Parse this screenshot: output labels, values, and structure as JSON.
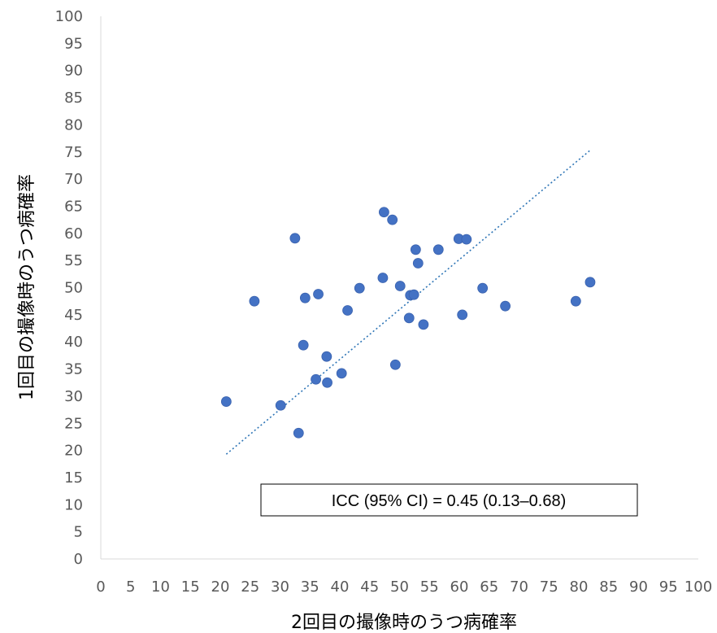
{
  "chart_data": {
    "type": "scatter",
    "xlabel": "2回目の撮像時のうつ病確率",
    "ylabel": "1回目の撮像時のうつ病確率",
    "xlim": [
      0,
      100
    ],
    "ylim": [
      0,
      100
    ],
    "x_ticks": [
      "0",
      "5",
      "10",
      "15",
      "20",
      "25",
      "30",
      "35",
      "40",
      "45",
      "50",
      "55",
      "60",
      "65",
      "70",
      "75",
      "80",
      "85",
      "90",
      "95",
      "100"
    ],
    "y_ticks": [
      "0",
      "5",
      "10",
      "15",
      "20",
      "25",
      "30",
      "35",
      "40",
      "45",
      "50",
      "55",
      "60",
      "65",
      "70",
      "75",
      "80",
      "85",
      "90",
      "95",
      "100"
    ],
    "grid": false,
    "legend": "none",
    "point_color": "#4472C4",
    "trendline": {
      "style": "dotted",
      "color": "#2E75B6",
      "from": [
        21,
        19.3
      ],
      "to": [
        82,
        75.4
      ]
    },
    "points": [
      {
        "x": 21.0,
        "y": 29.0
      },
      {
        "x": 25.7,
        "y": 47.5
      },
      {
        "x": 30.1,
        "y": 28.3
      },
      {
        "x": 32.5,
        "y": 59.1
      },
      {
        "x": 33.1,
        "y": 23.2
      },
      {
        "x": 33.9,
        "y": 39.4
      },
      {
        "x": 34.2,
        "y": 48.1
      },
      {
        "x": 36.0,
        "y": 33.1
      },
      {
        "x": 36.4,
        "y": 48.8
      },
      {
        "x": 37.8,
        "y": 37.3
      },
      {
        "x": 37.9,
        "y": 32.5
      },
      {
        "x": 40.3,
        "y": 34.2
      },
      {
        "x": 41.3,
        "y": 45.8
      },
      {
        "x": 43.3,
        "y": 49.9
      },
      {
        "x": 47.2,
        "y": 51.8
      },
      {
        "x": 47.4,
        "y": 63.9
      },
      {
        "x": 48.8,
        "y": 62.5
      },
      {
        "x": 49.3,
        "y": 35.8
      },
      {
        "x": 50.1,
        "y": 50.3
      },
      {
        "x": 51.6,
        "y": 44.4
      },
      {
        "x": 51.8,
        "y": 48.6
      },
      {
        "x": 52.4,
        "y": 48.7
      },
      {
        "x": 52.7,
        "y": 57.0
      },
      {
        "x": 53.1,
        "y": 54.5
      },
      {
        "x": 54.0,
        "y": 43.2
      },
      {
        "x": 56.5,
        "y": 57.0
      },
      {
        "x": 59.9,
        "y": 59.0
      },
      {
        "x": 60.5,
        "y": 45.0
      },
      {
        "x": 61.2,
        "y": 58.9
      },
      {
        "x": 63.9,
        "y": 49.9
      },
      {
        "x": 67.7,
        "y": 46.6
      },
      {
        "x": 79.5,
        "y": 47.5
      },
      {
        "x": 81.9,
        "y": 51.0
      }
    ],
    "annotation": "ICC (95% CI) = 0.45 (0.13–0.68)"
  }
}
